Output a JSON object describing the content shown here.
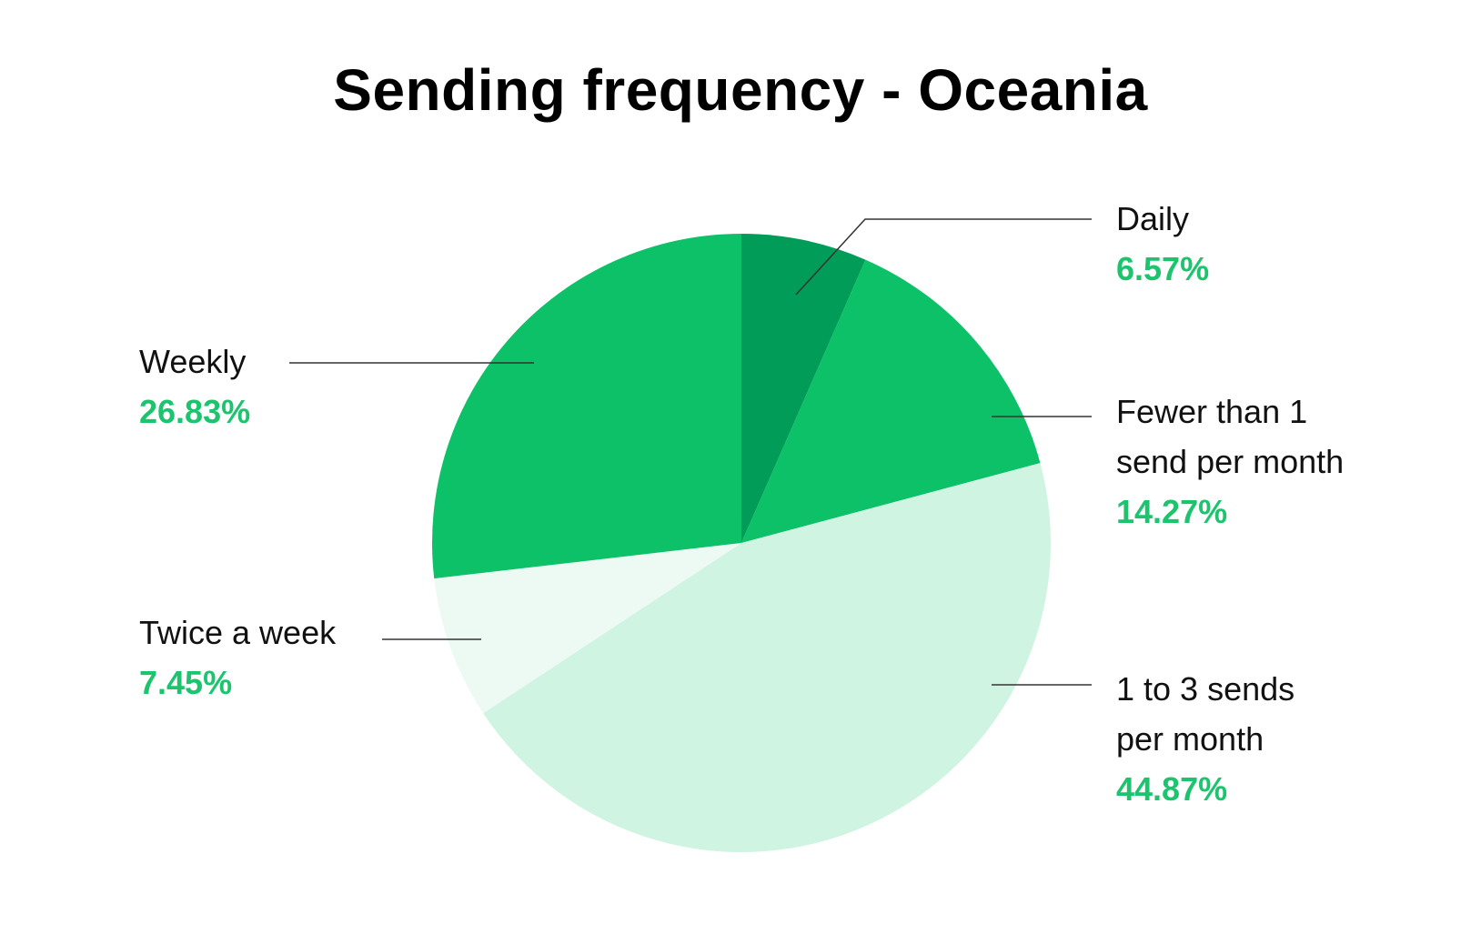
{
  "chart_data": {
    "type": "pie",
    "title": "Sending frequency -  Oceania",
    "start_angle_deg": 0,
    "direction": "clockwise",
    "slices": [
      {
        "name": "Daily",
        "value": 6.57,
        "label": "6.57%",
        "color": "#019c57"
      },
      {
        "name": "Fewer than 1\nsend per month",
        "value": 14.27,
        "label": "14.27%",
        "color": "#0cc168"
      },
      {
        "name": "1 to 3 sends\nper month",
        "value": 44.87,
        "label": "44.87%",
        "color": "#cff4e1"
      },
      {
        "name": "Twice a week",
        "value": 7.45,
        "label": "7.45%",
        "color": "#edfaf3"
      },
      {
        "name": "Weekly",
        "value": 26.83,
        "label": "26.83%",
        "color": "#0cc168"
      }
    ],
    "legend": "none",
    "label_color": "#1cc46e",
    "leader_line_color": "#333333"
  }
}
